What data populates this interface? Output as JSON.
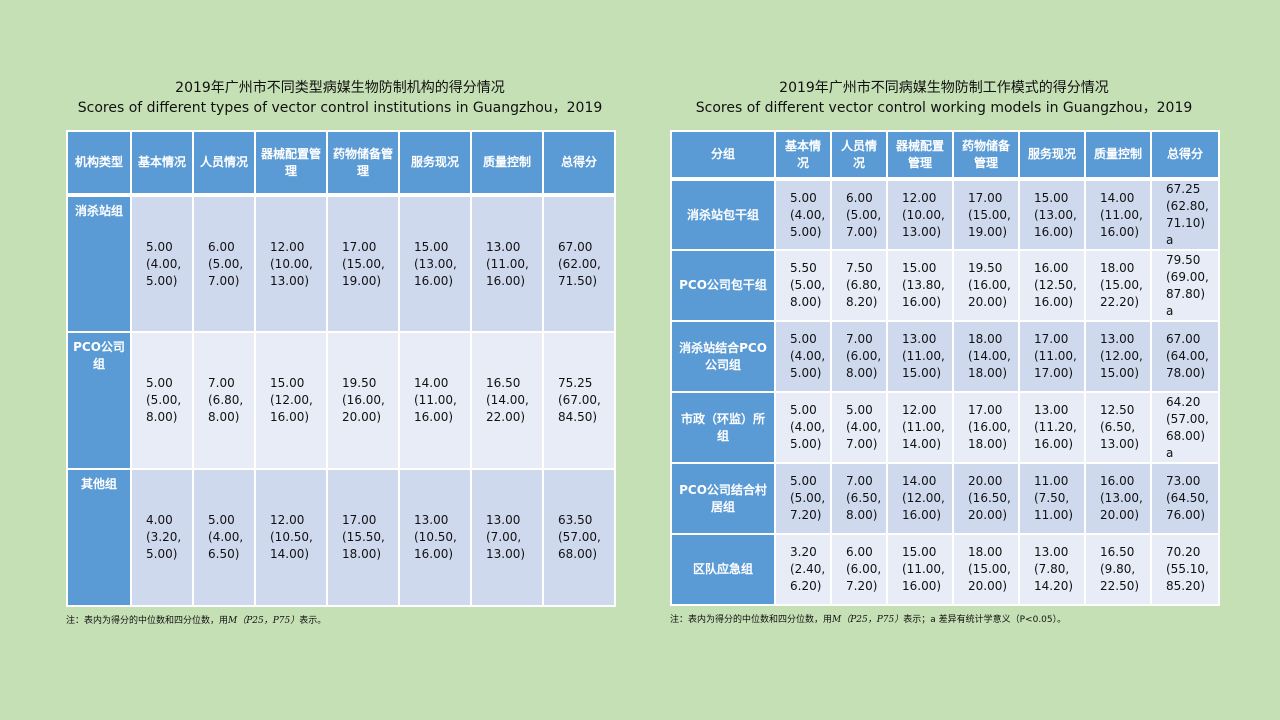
{
  "left": {
    "title_cn": "2019年广州市不同类型病媒生物防制机构的得分情况",
    "title_en": "Scores of different types of vector control institutions in Guangzhou，2019",
    "headers": [
      "机构类型",
      "基本情况",
      "人员情况",
      "器械配置管理",
      "药物储备管理",
      "服务现况",
      "质量控制",
      "总得分"
    ],
    "rows": [
      {
        "group": "消杀站组",
        "cells": [
          "5.00\n(4.00,\n5.00)",
          "6.00\n(5.00,\n7.00)",
          "12.00\n(10.00,\n13.00)",
          "17.00\n(15.00,\n19.00)",
          "15.00\n(13.00,\n16.00)",
          "13.00\n(11.00,\n16.00)",
          "67.00\n(62.00,\n71.50)"
        ]
      },
      {
        "group": "PCO公司组",
        "cells": [
          "5.00\n(5.00,\n8.00)",
          "7.00\n(6.80,\n8.00)",
          "15.00\n(12.00,\n16.00)",
          "19.50\n(16.00,\n20.00)",
          "14.00\n(11.00,\n16.00)",
          "16.50\n(14.00,\n22.00)",
          "75.25\n(67.00,\n84.50)"
        ]
      },
      {
        "group": "其他组",
        "cells": [
          "4.00\n(3.20,\n5.00)",
          "5.00\n(4.00,\n6.50)",
          "12.00\n(10.50,\n14.00)",
          "17.00\n(15.50,\n18.00)",
          "13.00\n(10.50,\n16.00)",
          "13.00\n(7.00,\n13.00)",
          "63.50\n(57.00,\n68.00)"
        ]
      }
    ],
    "note_prefix": "注：表内为得分的中位数和四分位数，用",
    "note_formula": "M（P25，P75）",
    "note_suffix": "表示。"
  },
  "right": {
    "title_cn": "2019年广州市不同病媒生物防制工作模式的得分情况",
    "title_en": "Scores of different vector control working models in Guangzhou，2019",
    "headers": [
      "分组",
      "基本情况",
      "人员情况",
      "器械配置管理",
      "药物储备管理",
      "服务现况",
      "质量控制",
      "总得分"
    ],
    "rows": [
      {
        "group": "消杀站包干组",
        "cells": [
          "5.00\n(4.00,\n5.00)",
          "6.00\n(5.00,\n7.00)",
          "12.00\n(10.00,\n13.00)",
          "17.00\n(15.00,\n19.00)",
          "15.00\n(13.00,\n16.00)",
          "14.00\n(11.00,\n16.00)",
          "67.25\n(62.80,\n71.10) a"
        ]
      },
      {
        "group": "PCO公司包干组",
        "cells": [
          "5.50\n(5.00,\n8.00)",
          "7.50\n(6.80,\n8.20)",
          "15.00\n(13.80,\n16.00)",
          "19.50\n(16.00,\n20.00)",
          "16.00\n(12.50,\n16.00)",
          "18.00\n(15.00,\n22.20)",
          "79.50\n(69.00,\n87.80) a"
        ]
      },
      {
        "group": "消杀站结合PCO公司组",
        "cells": [
          "5.00\n(4.00,\n5.00)",
          "7.00\n(6.00,\n8.00)",
          "13.00\n(11.00,\n15.00)",
          "18.00\n(14.00,\n18.00)",
          "17.00\n(11.00,\n17.00)",
          "13.00\n(12.00,\n15.00)",
          "67.00\n(64.00,\n78.00)"
        ]
      },
      {
        "group": "市政（环监）所组",
        "cells": [
          "5.00\n(4.00,\n5.00)",
          "5.00\n(4.00,\n7.00)",
          "12.00\n(11.00,\n14.00)",
          "17.00\n(16.00,\n18.00)",
          "13.00\n(11.20,\n16.00)",
          "12.50\n(6.50,\n13.00)",
          "64.20\n(57.00,\n68.00) a"
        ]
      },
      {
        "group": "PCO公司结合村居组",
        "cells": [
          "5.00\n(5.00,\n7.20)",
          "7.00\n(6.50,\n8.00)",
          "14.00\n(12.00,\n16.00)",
          "20.00\n(16.50,\n20.00)",
          "11.00\n(7.50,\n11.00)",
          "16.00\n(13.00,\n20.00)",
          "73.00\n(64.50,\n76.00)"
        ]
      },
      {
        "group": "区队应急组",
        "cells": [
          "3.20\n(2.40,\n6.20)",
          "6.00\n(6.00,\n7.20)",
          "15.00\n(11.00,\n16.00)",
          "18.00\n(15.00,\n20.00)",
          "13.00\n(7.80,\n14.20)",
          "16.50\n(9.80,\n22.50)",
          "70.20\n(55.10,\n85.20)"
        ]
      }
    ],
    "note_prefix": "注：表内为得分的中位数和四分位数，用",
    "note_formula": "M（P25，P75）",
    "note_suffix": "表示；a 差异有统计学意义（P<0.05）。"
  }
}
